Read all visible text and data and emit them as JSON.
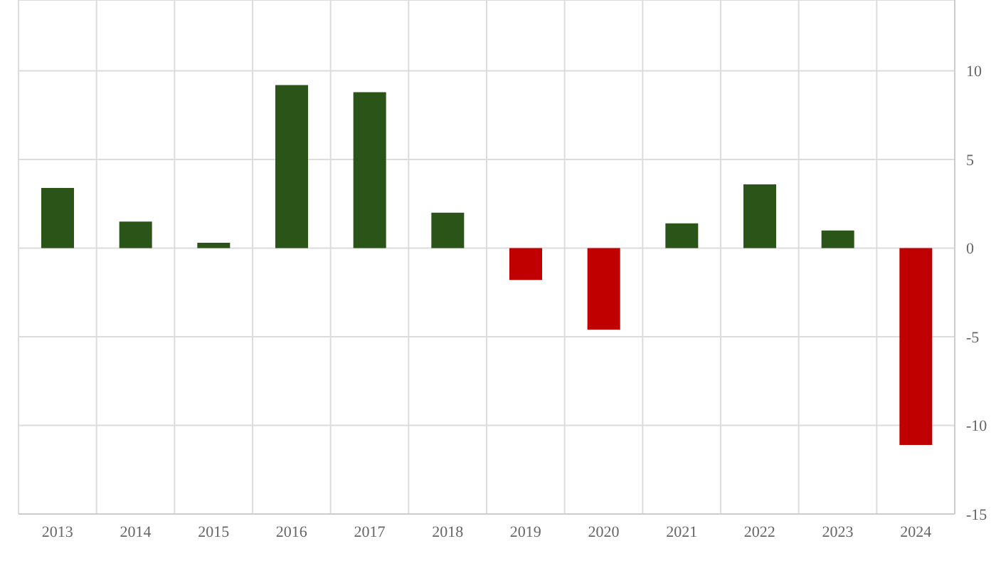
{
  "chart_data": {
    "type": "bar",
    "categories": [
      "2013",
      "2014",
      "2015",
      "2016",
      "2017",
      "2018",
      "2019",
      "2020",
      "2021",
      "2022",
      "2023",
      "2024"
    ],
    "values": [
      3.4,
      1.5,
      0.3,
      9.2,
      8.8,
      2.0,
      -1.8,
      -4.6,
      1.4,
      3.6,
      1.0,
      -11.1
    ],
    "colors": [
      "#2a5418",
      "#2a5418",
      "#2a5418",
      "#2a5418",
      "#2a5418",
      "#2a5418",
      "#c00000",
      "#c00000",
      "#2a5418",
      "#2a5418",
      "#2a5418",
      "#c00000"
    ],
    "ylim": [
      -15,
      14
    ],
    "yticks": [
      -15,
      -10,
      -5,
      0,
      5,
      10
    ],
    "grid": true
  }
}
